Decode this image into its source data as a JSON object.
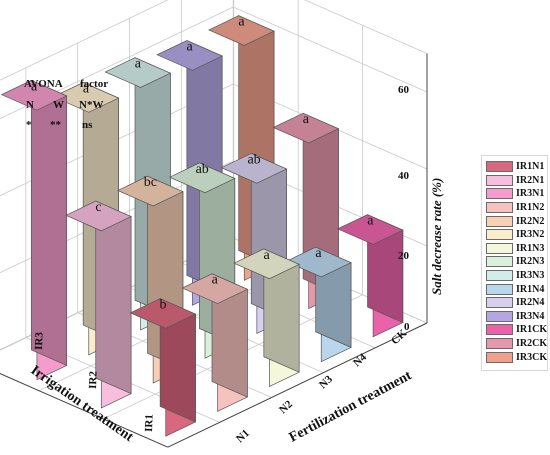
{
  "chart_data": {
    "type": "bar3d",
    "x_categories": [
      "N1",
      "N2",
      "N3",
      "N4",
      "CK"
    ],
    "y_categories": [
      "IR1",
      "IR2",
      "IR3"
    ],
    "xlabel": "Fertilization treatment",
    "ylabel": "Irrigation treatment",
    "zlabel": "Salt decrease rate (%)",
    "zlim": [
      0,
      60
    ],
    "zticks": [
      "0",
      "20",
      "40",
      "60"
    ],
    "bars": [
      {
        "name": "IR1N1",
        "x": "N1",
        "y": "IR1",
        "value": 28,
        "label": "b",
        "color": "#d9677e"
      },
      {
        "name": "IR2N1",
        "x": "N1",
        "y": "IR2",
        "value": 46,
        "label": "c",
        "color": "#f8bede"
      },
      {
        "name": "IR3N1",
        "x": "N1",
        "y": "IR3",
        "value": 70,
        "label": "a",
        "color": "#f49ccc"
      },
      {
        "name": "IR1N2",
        "x": "N2",
        "y": "IR1",
        "value": 28,
        "label": "a",
        "color": "#f6c2be"
      },
      {
        "name": "IR2N2",
        "x": "N2",
        "y": "IR2",
        "value": 46,
        "label": "bc",
        "color": "#f7d0b6"
      },
      {
        "name": "IR3N2",
        "x": "N2",
        "y": "IR3",
        "value": 63,
        "label": "a",
        "color": "#fbeccc"
      },
      {
        "name": "IR1N3",
        "x": "N3",
        "y": "IR1",
        "value": 28,
        "label": "a",
        "color": "#f4f7da"
      },
      {
        "name": "IR2N3",
        "x": "N3",
        "y": "IR2",
        "value": 43,
        "label": "ab",
        "color": "#d9f1dc"
      },
      {
        "name": "IR3N3",
        "x": "N3",
        "y": "IR3",
        "value": 63,
        "label": "a",
        "color": "#d3ece8"
      },
      {
        "name": "IR1N4",
        "x": "N4",
        "y": "IR1",
        "value": 22,
        "label": "a",
        "color": "#b9d6ec"
      },
      {
        "name": "IR2N4",
        "x": "N4",
        "y": "IR2",
        "value": 39,
        "label": "ab",
        "color": "#d8d0ee"
      },
      {
        "name": "IR3N4",
        "x": "N4",
        "y": "IR3",
        "value": 61,
        "label": "a",
        "color": "#b3a6e2"
      },
      {
        "name": "IR1CK",
        "x": "CK",
        "y": "IR1",
        "value": 24,
        "label": "a",
        "color": "#ea63aa"
      },
      {
        "name": "IR2CK",
        "x": "CK",
        "y": "IR2",
        "value": 43,
        "label": "a",
        "color": "#e597ac"
      },
      {
        "name": "IR3CK",
        "x": "CK",
        "y": "IR3",
        "value": 61,
        "label": "a",
        "color": "#f0a18e"
      }
    ],
    "legend": [
      "IR1N1",
      "IR2N1",
      "IR3N1",
      "IR1N2",
      "IR2N2",
      "IR3N2",
      "IR1N3",
      "IR2N3",
      "IR3N3",
      "IR1N4",
      "IR2N4",
      "IR3N4",
      "IR1CK",
      "IR2CK",
      "IR3CK"
    ],
    "legend_position": "right",
    "grid": true
  },
  "anova": {
    "header_left": "AVONA",
    "header_right": "factor",
    "factors": [
      "N",
      "W",
      "N*W"
    ],
    "significance": [
      "*",
      "**",
      "ns"
    ]
  }
}
